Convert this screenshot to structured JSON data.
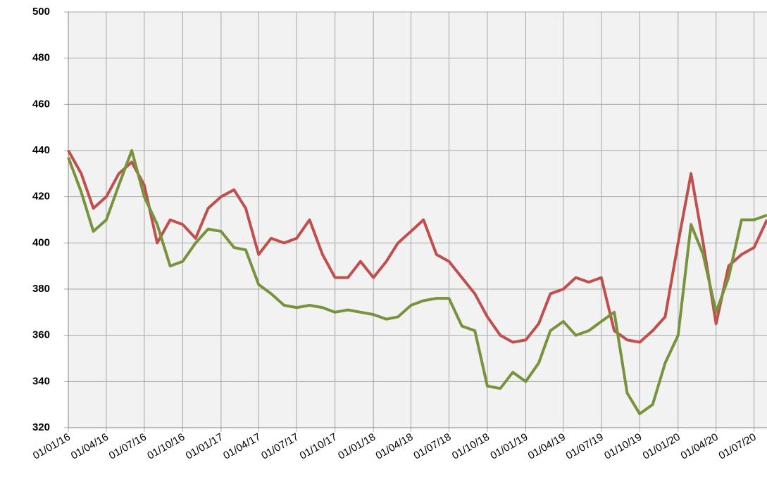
{
  "chart_data": {
    "type": "line",
    "x": [
      "01/01/16",
      "01/02/16",
      "01/03/16",
      "01/04/16",
      "01/05/16",
      "01/06/16",
      "01/07/16",
      "01/08/16",
      "01/09/16",
      "01/10/16",
      "01/11/16",
      "01/12/16",
      "01/01/17",
      "01/02/17",
      "01/03/17",
      "01/04/17",
      "01/05/17",
      "01/06/17",
      "01/07/17",
      "01/08/17",
      "01/09/17",
      "01/10/17",
      "01/11/17",
      "01/12/17",
      "01/01/18",
      "01/02/18",
      "01/03/18",
      "01/04/18",
      "01/05/18",
      "01/06/18",
      "01/07/18",
      "01/08/18",
      "01/09/18",
      "01/10/18",
      "01/11/18",
      "01/12/18",
      "01/01/19",
      "01/02/19",
      "01/03/19",
      "01/04/19",
      "01/05/19",
      "01/06/19",
      "01/07/19",
      "01/08/19",
      "01/09/19",
      "01/10/19",
      "01/11/19",
      "01/12/19",
      "01/01/20",
      "01/02/20",
      "01/03/20",
      "01/04/20",
      "01/05/20",
      "01/06/20",
      "01/07/20",
      "01/08/20"
    ],
    "series": [
      {
        "color": "#c0504d",
        "values": [
          440,
          430,
          415,
          420,
          430,
          435,
          425,
          400,
          410,
          408,
          402,
          415,
          420,
          423,
          415,
          395,
          402,
          400,
          402,
          410,
          395,
          385,
          385,
          392,
          385,
          392,
          400,
          405,
          410,
          395,
          392,
          385,
          378,
          368,
          360,
          357,
          358,
          365,
          378,
          380,
          385,
          383,
          385,
          362,
          358,
          357,
          362,
          368,
          400,
          430,
          400,
          365,
          390,
          395,
          398,
          410
        ]
      },
      {
        "color": "#77933c",
        "values": [
          437,
          422,
          405,
          410,
          425,
          440,
          420,
          408,
          390,
          392,
          400,
          406,
          405,
          398,
          397,
          382,
          378,
          373,
          372,
          373,
          372,
          370,
          371,
          370,
          369,
          367,
          368,
          373,
          375,
          376,
          376,
          364,
          362,
          338,
          337,
          344,
          340,
          348,
          362,
          366,
          360,
          362,
          366,
          370,
          335,
          326,
          330,
          348,
          360,
          408,
          395,
          370,
          385,
          410,
          410,
          412
        ]
      }
    ],
    "xlim": [
      "01/01/16",
      "01/08/20"
    ],
    "xticks": [
      "01/01/16",
      "01/04/16",
      "01/07/16",
      "01/10/16",
      "01/01/17",
      "01/04/17",
      "01/07/17",
      "01/10/17",
      "01/01/18",
      "01/04/18",
      "01/07/18",
      "01/10/18",
      "01/01/19",
      "01/04/19",
      "01/07/19",
      "01/10/19",
      "01/01/20",
      "01/04/20",
      "01/07/20"
    ],
    "ylim": [
      320,
      500
    ],
    "yticks": [
      320,
      340,
      360,
      380,
      400,
      420,
      440,
      460,
      480,
      500
    ],
    "grid": true
  }
}
